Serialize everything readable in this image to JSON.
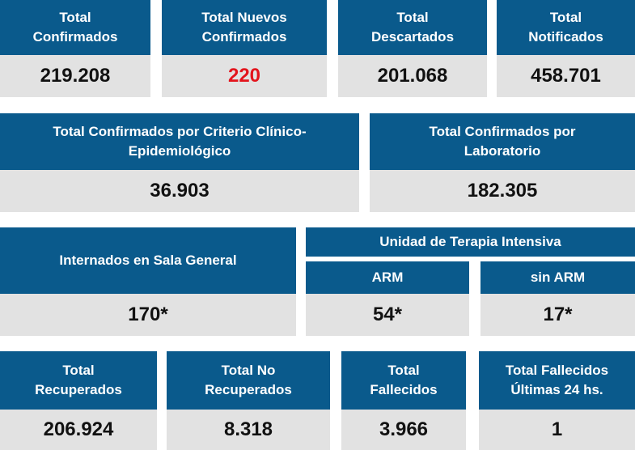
{
  "accent_color": "#0a5a8c",
  "value_bg_color": "#e2e2e2",
  "highlight_color": "#e3141c",
  "row1": [
    {
      "label_lines": [
        "Total",
        "Confirmados"
      ],
      "value": "219.208"
    },
    {
      "label_lines": [
        "Total Nuevos",
        "Confirmados"
      ],
      "value": "220"
    },
    {
      "label_lines": [
        "Total",
        "Descartados"
      ],
      "value": "201.068"
    },
    {
      "label_lines": [
        "Total",
        "Notificados"
      ],
      "value": "458.701"
    }
  ],
  "row2": [
    {
      "label_lines": [
        "Total Confirmados por Criterio Clínico-",
        "Epidemiológico"
      ],
      "value": "36.903"
    },
    {
      "label_lines": [
        "Total Confirmados por",
        "Laboratorio"
      ],
      "value": "182.305"
    }
  ],
  "row3": {
    "general": {
      "label": "Internados en Sala General",
      "value": "170*"
    },
    "uti_title": "Unidad de Terapia Intensiva",
    "arm": {
      "label": "ARM",
      "value": "54*"
    },
    "sin_arm": {
      "label": "sin ARM",
      "value": "17*"
    }
  },
  "row4": [
    {
      "label_lines": [
        "Total",
        "Recuperados"
      ],
      "value": "206.924"
    },
    {
      "label_lines": [
        "Total No",
        "Recuperados"
      ],
      "value": "8.318"
    },
    {
      "label_lines": [
        "Total",
        "Fallecidos"
      ],
      "value": "3.966"
    },
    {
      "label_lines": [
        "Total Fallecidos",
        "Últimas 24 hs."
      ],
      "value": "1"
    }
  ]
}
